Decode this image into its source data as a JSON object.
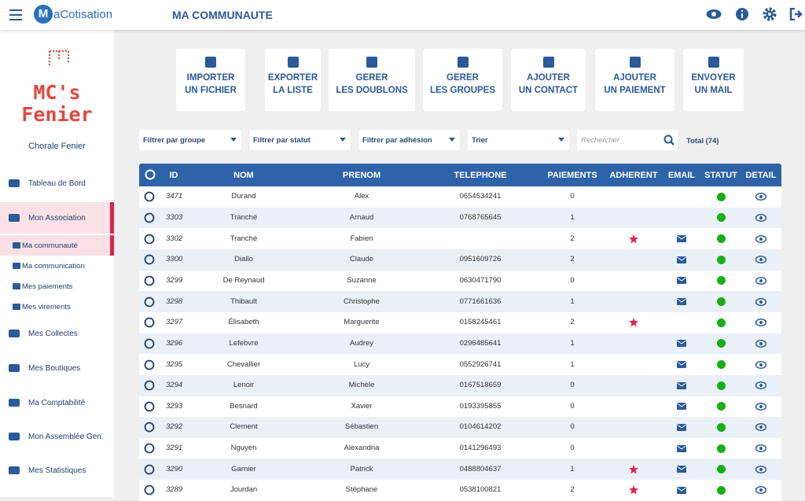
{
  "header": {
    "logo_mark": "M",
    "logo_text": "aCotisation",
    "title": "MA COMMUNAUTE"
  },
  "sidebar": {
    "org_logo": [
      "MC's",
      "Fenier"
    ],
    "org_name": "Chorale Fenier",
    "nav": [
      "Tableau de Bord",
      "Mon Association",
      "Mes Collectes",
      "Mes Boutiques",
      "Ma Comptabilité",
      "Mon Assemblée Gen.",
      "Mes Statistiques"
    ],
    "subnav": [
      "Ma communauté",
      "Ma communication",
      "Mes paiements",
      "Mes virements"
    ]
  },
  "actions": [
    [
      "IMPORTER",
      "UN FICHIER"
    ],
    [
      "EXPORTER",
      "LA LISTE"
    ],
    [
      "GERER",
      "LES DOUBLONS"
    ],
    [
      "GERER",
      "LES GROUPES"
    ],
    [
      "AJOUTER",
      "UN CONTACT"
    ],
    [
      "AJOUTER",
      "UN PAIEMENT"
    ],
    [
      "ENVOYER",
      "UN MAIL"
    ]
  ],
  "filters": {
    "selects": [
      "Filtrer par groupe",
      "Filtrer par statut",
      "Filtrer par adhésion",
      "Trier"
    ],
    "search_placeholder": "Rechercher",
    "total": "Total (74)"
  },
  "table": {
    "columns": [
      "ID",
      "NOM",
      "PRENOM",
      "TELEPHONE",
      "PAIEMENTS",
      "ADHERENT",
      "EMAIL",
      "STATUT",
      "DETAIL"
    ],
    "rows": [
      {
        "id": 3471,
        "nom": "Durand",
        "prenom": "Alex",
        "telephone": "0654534241",
        "paiements": 0,
        "adherent": false,
        "email": false,
        "statut": true
      },
      {
        "id": 3303,
        "nom": "Tranché",
        "prenom": "Arnaud",
        "telephone": "0768765645",
        "paiements": 1,
        "adherent": false,
        "email": false,
        "statut": true
      },
      {
        "id": 3302,
        "nom": "Tranché",
        "prenom": "Fabien",
        "telephone": null,
        "paiements": 2,
        "adherent": true,
        "email": true,
        "statut": true
      },
      {
        "id": 3300,
        "nom": "Diallo",
        "prenom": "Claude",
        "telephone": "0951609726",
        "paiements": 2,
        "adherent": false,
        "email": true,
        "statut": true
      },
      {
        "id": 3299,
        "nom": "De Reynaud",
        "prenom": "Suzanne",
        "telephone": "0630471790",
        "paiements": 0,
        "adherent": false,
        "email": true,
        "statut": true
      },
      {
        "id": 3298,
        "nom": "Thibault",
        "prenom": "Christophe",
        "telephone": "0771661636",
        "paiements": 1,
        "adherent": false,
        "email": true,
        "statut": true
      },
      {
        "id": 3297,
        "nom": "Élisabeth",
        "prenom": "Marguerite",
        "telephone": "0158245461",
        "paiements": 2,
        "adherent": true,
        "email": false,
        "statut": true
      },
      {
        "id": 3296,
        "nom": "Lefebvre",
        "prenom": "Audrey",
        "telephone": "0296485641",
        "paiements": 1,
        "adherent": false,
        "email": true,
        "statut": true
      },
      {
        "id": 3295,
        "nom": "Chevallier",
        "prenom": "Lucy",
        "telephone": "0552926741",
        "paiements": 1,
        "adherent": false,
        "email": true,
        "statut": true
      },
      {
        "id": 3294,
        "nom": "Lenoir",
        "prenom": "Michèle",
        "telephone": "0167518659",
        "paiements": 0,
        "adherent": false,
        "email": true,
        "statut": true
      },
      {
        "id": 3293,
        "nom": "Besnard",
        "prenom": "Xavier",
        "telephone": "0193395855",
        "paiements": 0,
        "adherent": false,
        "email": true,
        "statut": true
      },
      {
        "id": 3292,
        "nom": "Clement",
        "prenom": "Sébastien",
        "telephone": "0104614202",
        "paiements": 0,
        "adherent": false,
        "email": true,
        "statut": true
      },
      {
        "id": 3291,
        "nom": "Nguyen",
        "prenom": "Alexandria",
        "telephone": "0141296493",
        "paiements": 0,
        "adherent": false,
        "email": true,
        "statut": true
      },
      {
        "id": 3290,
        "nom": "Garnier",
        "prenom": "Patrick",
        "telephone": "0488804637",
        "paiements": 1,
        "adherent": true,
        "email": true,
        "statut": true
      },
      {
        "id": 3289,
        "nom": "Jourdan",
        "prenom": "Stéphane",
        "telephone": "0538100821",
        "paiements": 2,
        "adherent": true,
        "email": true,
        "statut": true
      }
    ]
  }
}
